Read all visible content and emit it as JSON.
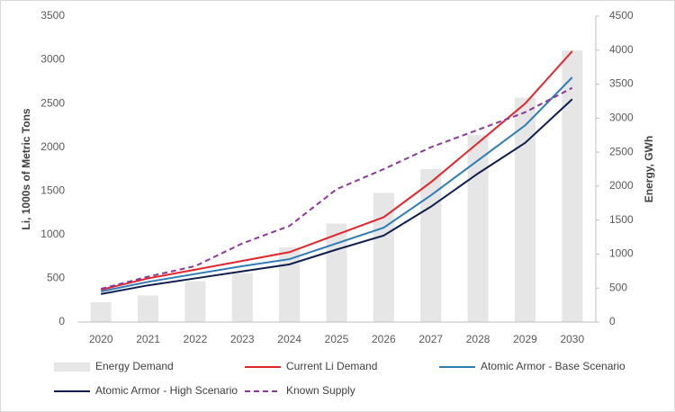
{
  "chart_data": {
    "type": "combo",
    "ylabel": "Li, 1000s of Metric Tons",
    "y2label": "Energy, GWh",
    "categories": [
      "2020",
      "2021",
      "2022",
      "2023",
      "2024",
      "2025",
      "2026",
      "2027",
      "2028",
      "2029",
      "2030"
    ],
    "ylim": [
      0,
      3500
    ],
    "yticks": [
      0,
      500,
      1000,
      1500,
      2000,
      2500,
      3000,
      3500
    ],
    "y2lim": [
      0,
      4500
    ],
    "y2ticks": [
      0,
      500,
      1000,
      1500,
      2000,
      2500,
      3000,
      3500,
      4000,
      4500
    ],
    "series": [
      {
        "name": "Energy Demand",
        "type": "bar",
        "axis": "y2",
        "color": "#e6e6e6",
        "values": [
          290,
          390,
          600,
          720,
          1100,
          1450,
          1900,
          2250,
          2750,
          3300,
          4000
        ]
      },
      {
        "name": "Current Li Demand",
        "type": "line",
        "color": "#e3242b",
        "style": "solid",
        "values": [
          370,
          500,
          600,
          700,
          800,
          1000,
          1200,
          1600,
          2050,
          2500,
          3100
        ]
      },
      {
        "name": "Atomic Armor - Base Scenario",
        "type": "line",
        "color": "#2e7bb6",
        "style": "solid",
        "values": [
          350,
          460,
          550,
          640,
          720,
          900,
          1080,
          1450,
          1850,
          2250,
          2800
        ]
      },
      {
        "name": "Atomic Armor -  High Scenario",
        "type": "line",
        "color": "#0e1f4d",
        "style": "solid",
        "values": [
          320,
          420,
          500,
          580,
          660,
          830,
          990,
          1320,
          1700,
          2050,
          2550
        ]
      },
      {
        "name": "Known Supply",
        "type": "line",
        "color": "#8a3a98",
        "style": "dashed",
        "values": [
          380,
          520,
          640,
          900,
          1100,
          1520,
          1750,
          2000,
          2200,
          2400,
          2680
        ]
      }
    ]
  }
}
